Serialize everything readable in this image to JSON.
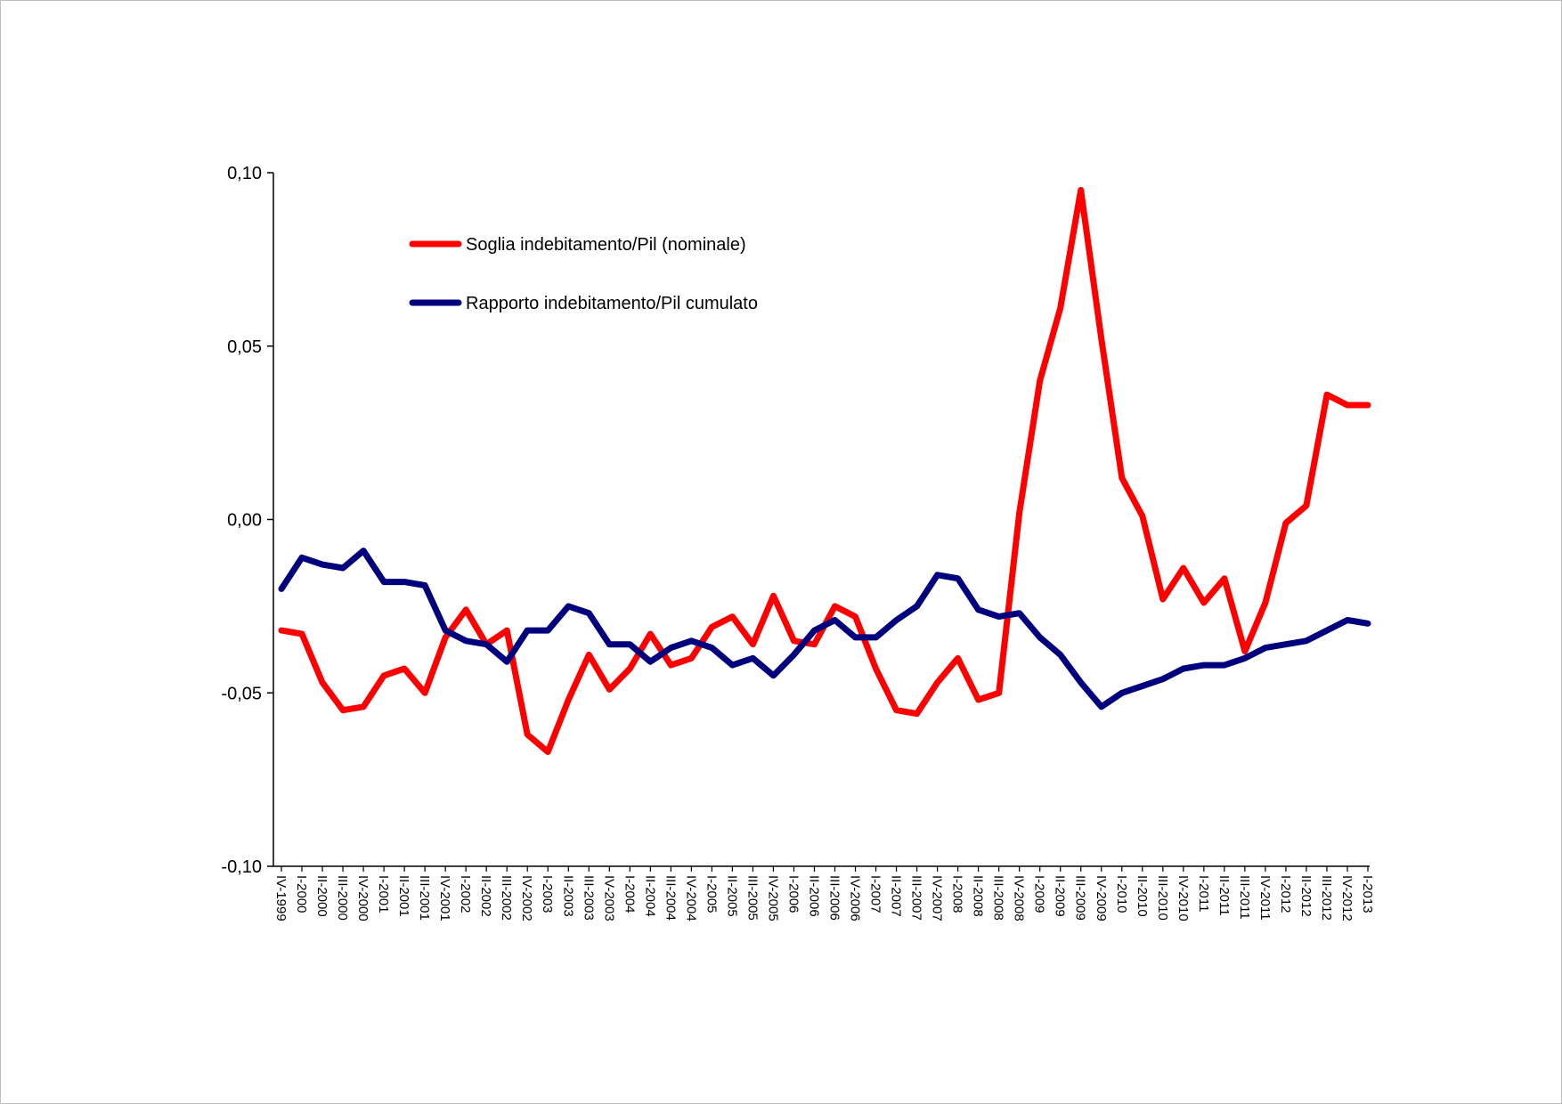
{
  "chart_data": {
    "type": "line",
    "title": "",
    "xlabel": "",
    "ylabel": "",
    "ylim": [
      -0.1,
      0.1
    ],
    "yticks": [
      0.1,
      0.05,
      0.0,
      -0.05,
      -0.1
    ],
    "ytick_labels": [
      "0,10",
      "0,05",
      "0,00",
      "-0,05",
      "-0,10"
    ],
    "grid": false,
    "legend_position": "top-left",
    "categories": [
      "IV-1999",
      "I-2000",
      "II-2000",
      "III-2000",
      "IV-2000",
      "I-2001",
      "II-2001",
      "III-2001",
      "IV-2001",
      "I-2002",
      "II-2002",
      "III-2002",
      "IV-2002",
      "I-2003",
      "II-2003",
      "III-2003",
      "IV-2003",
      "I-2004",
      "II-2004",
      "III-2004",
      "IV-2004",
      "I-2005",
      "II-2005",
      "III-2005",
      "IV-2005",
      "I-2006",
      "II-2006",
      "III-2006",
      "IV-2006",
      "I-2007",
      "II-2007",
      "III-2007",
      "IV-2007",
      "I-2008",
      "II-2008",
      "III-2008",
      "IV-2008",
      "I-2009",
      "II-2009",
      "III-2009",
      "IV-2009",
      "I-2010",
      "II-2010",
      "III-2010",
      "IV-2010",
      "I-2011",
      "II-2011",
      "III-2011",
      "IV-2011",
      "I-2012",
      "II-2012",
      "III-2012",
      "IV-2012",
      "I-2013"
    ],
    "series": [
      {
        "name": "Soglia indebitamento/Pil (nominale)",
        "color": "#ff0000",
        "values": [
          -0.032,
          -0.033,
          -0.047,
          -0.055,
          -0.054,
          -0.045,
          -0.043,
          -0.05,
          -0.034,
          -0.026,
          -0.036,
          -0.032,
          -0.062,
          -0.067,
          -0.052,
          -0.039,
          -0.049,
          -0.043,
          -0.033,
          -0.042,
          -0.04,
          -0.031,
          -0.028,
          -0.036,
          -0.022,
          -0.035,
          -0.036,
          -0.025,
          -0.028,
          -0.043,
          -0.055,
          -0.056,
          -0.047,
          -0.04,
          -0.052,
          -0.05,
          0.002,
          0.04,
          0.061,
          0.095,
          0.052,
          0.012,
          0.001,
          -0.023,
          -0.014,
          -0.024,
          -0.017,
          -0.038,
          -0.024,
          -0.001,
          0.004,
          0.036,
          0.033,
          0.033
        ]
      },
      {
        "name": "Rapporto indebitamento/Pil cumulato",
        "color": "#00007f",
        "values": [
          -0.02,
          -0.011,
          -0.013,
          -0.014,
          -0.009,
          -0.018,
          -0.018,
          -0.019,
          -0.032,
          -0.035,
          -0.036,
          -0.041,
          -0.032,
          -0.032,
          -0.025,
          -0.027,
          -0.036,
          -0.036,
          -0.041,
          -0.037,
          -0.035,
          -0.037,
          -0.042,
          -0.04,
          -0.045,
          -0.039,
          -0.032,
          -0.029,
          -0.034,
          -0.034,
          -0.029,
          -0.025,
          -0.016,
          -0.017,
          -0.026,
          -0.028,
          -0.027,
          -0.034,
          -0.039,
          -0.047,
          -0.054,
          -0.05,
          -0.048,
          -0.046,
          -0.043,
          -0.042,
          -0.042,
          -0.04,
          -0.037,
          -0.036,
          -0.035,
          -0.032,
          -0.029,
          -0.03
        ]
      }
    ]
  }
}
